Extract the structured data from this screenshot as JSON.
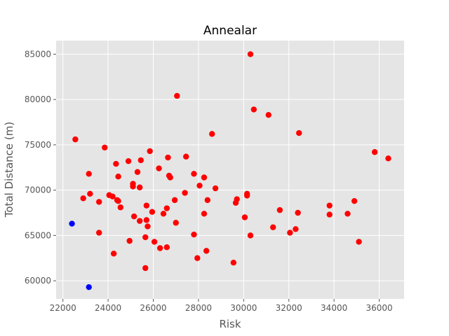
{
  "chart_data": {
    "type": "scatter",
    "title": "Annealar",
    "xlabel": "Risk",
    "ylabel": "Total Distance (m)",
    "xlim": [
      21700,
      37100
    ],
    "ylim": [
      58000,
      86500
    ],
    "xticks": [
      22000,
      24000,
      26000,
      28000,
      30000,
      32000,
      34000,
      36000
    ],
    "yticks": [
      60000,
      65000,
      70000,
      75000,
      80000,
      85000
    ],
    "grid": true,
    "style": "ggplot",
    "colors": {
      "background": "#E5E5E5",
      "grid": "#FFFFFF",
      "text": "#555555",
      "title": "#000000"
    },
    "series": [
      {
        "color": "#FF0000",
        "points": [
          [
            22550,
            75600
          ],
          [
            22900,
            69100
          ],
          [
            23150,
            71800
          ],
          [
            23200,
            69600
          ],
          [
            23600,
            68700
          ],
          [
            23600,
            65300
          ],
          [
            23850,
            74700
          ],
          [
            24050,
            69450
          ],
          [
            24200,
            69300
          ],
          [
            24250,
            63000
          ],
          [
            24350,
            72900
          ],
          [
            24400,
            68900
          ],
          [
            24450,
            71500
          ],
          [
            24450,
            68800
          ],
          [
            24550,
            68100
          ],
          [
            24900,
            73200
          ],
          [
            24950,
            64400
          ],
          [
            25100,
            70700
          ],
          [
            25100,
            70400
          ],
          [
            25150,
            67100
          ],
          [
            25300,
            72000
          ],
          [
            25400,
            70300
          ],
          [
            25400,
            66600
          ],
          [
            25450,
            73300
          ],
          [
            25650,
            64800
          ],
          [
            25650,
            61400
          ],
          [
            25700,
            68300
          ],
          [
            25700,
            66700
          ],
          [
            25750,
            66000
          ],
          [
            25850,
            74300
          ],
          [
            25950,
            67600
          ],
          [
            26050,
            64300
          ],
          [
            26250,
            72400
          ],
          [
            26300,
            63600
          ],
          [
            26450,
            67400
          ],
          [
            26600,
            68000
          ],
          [
            26600,
            63700
          ],
          [
            26650,
            73600
          ],
          [
            26700,
            71600
          ],
          [
            26750,
            71400
          ],
          [
            26950,
            68900
          ],
          [
            27000,
            66400
          ],
          [
            27050,
            80400
          ],
          [
            27400,
            69700
          ],
          [
            27450,
            73700
          ],
          [
            27800,
            71800
          ],
          [
            27800,
            65100
          ],
          [
            27950,
            62500
          ],
          [
            28050,
            70500
          ],
          [
            28250,
            71400
          ],
          [
            28250,
            67400
          ],
          [
            28350,
            63300
          ],
          [
            28400,
            68900
          ],
          [
            28600,
            76200
          ],
          [
            28750,
            70200
          ],
          [
            29550,
            62000
          ],
          [
            29650,
            68600
          ],
          [
            29700,
            69000
          ],
          [
            30050,
            67000
          ],
          [
            30150,
            69600
          ],
          [
            30150,
            69400
          ],
          [
            30300,
            65000
          ],
          [
            30300,
            85000
          ],
          [
            30450,
            78900
          ],
          [
            31100,
            78300
          ],
          [
            31300,
            65900
          ],
          [
            31600,
            67800
          ],
          [
            32050,
            65300
          ],
          [
            32300,
            65700
          ],
          [
            32400,
            67500
          ],
          [
            32450,
            76300
          ],
          [
            33800,
            68300
          ],
          [
            33800,
            67300
          ],
          [
            34600,
            67400
          ],
          [
            34900,
            68800
          ],
          [
            35100,
            64300
          ],
          [
            35800,
            74200
          ],
          [
            36400,
            73500
          ]
        ]
      },
      {
        "color": "#0000FF",
        "points": [
          [
            22400,
            66300
          ],
          [
            23150,
            59300
          ]
        ]
      }
    ]
  }
}
